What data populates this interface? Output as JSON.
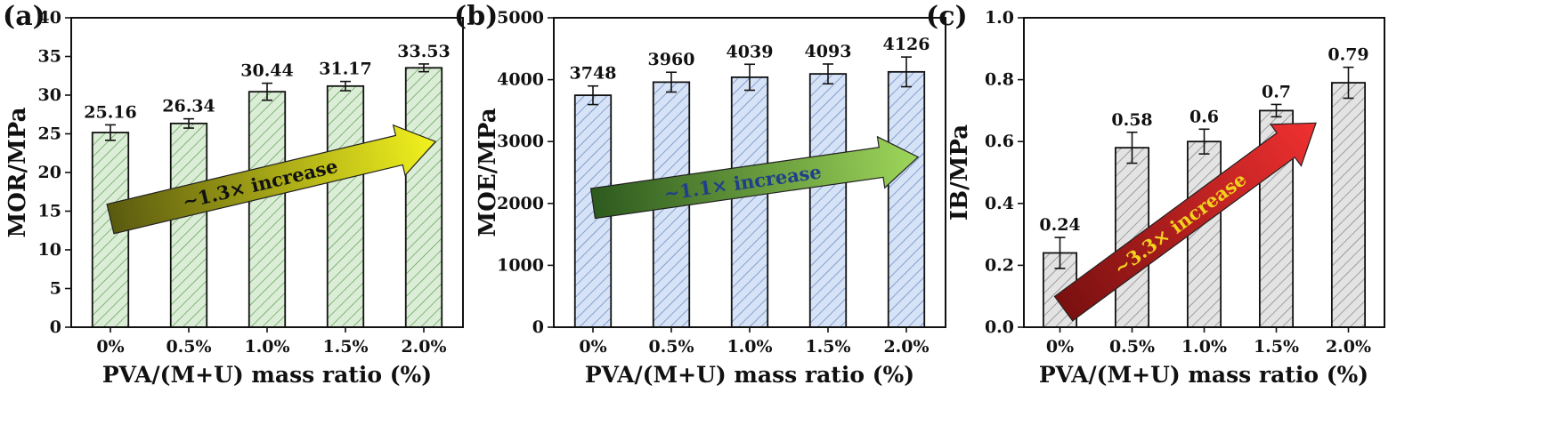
{
  "chart_data": [
    {
      "panel_label": "(a)",
      "type": "bar",
      "categories": [
        "0%",
        "0.5%",
        "1.0%",
        "1.5%",
        "2.0%"
      ],
      "values": [
        25.16,
        26.34,
        30.44,
        31.17,
        33.53
      ],
      "value_labels": [
        "25.16",
        "26.34",
        "30.44",
        "31.17",
        "33.53"
      ],
      "errors": [
        1.0,
        0.6,
        1.1,
        0.6,
        0.5
      ],
      "xlabel": "PVA/(M+U) mass ratio (%)",
      "ylabel": "MOR/MPa",
      "ylim": [
        0,
        40
      ],
      "yticks": [
        0,
        5,
        10,
        15,
        20,
        25,
        30,
        35,
        40
      ],
      "ytick_labels": [
        "0",
        "5",
        "10",
        "15",
        "20",
        "25",
        "30",
        "35",
        "40"
      ],
      "annotation": "~1.3× increase",
      "arrow": {
        "from_category": 0,
        "from_value": 14,
        "to_category": 4.15,
        "to_value": 24
      },
      "bar_color": "#dcedd7",
      "hatch_color": "#4f9a45",
      "arrow_colors": [
        "#5a5a10",
        "#f2f21e"
      ],
      "annotation_color": "#111111"
    },
    {
      "panel_label": "(b)",
      "type": "bar",
      "categories": [
        "0%",
        "0.5%",
        "1.0%",
        "1.5%",
        "2.0%"
      ],
      "values": [
        3748,
        3960,
        4039,
        4093,
        4126
      ],
      "value_labels": [
        "3748",
        "3960",
        "4039",
        "4093",
        "4126"
      ],
      "errors": [
        150,
        160,
        210,
        160,
        240
      ],
      "xlabel": "PVA/(M+U) mass ratio (%)",
      "ylabel": "MOE/MPa",
      "ylim": [
        0,
        5000
      ],
      "yticks": [
        0,
        1000,
        2000,
        3000,
        4000,
        5000
      ],
      "ytick_labels": [
        "0",
        "1000",
        "2000",
        "3000",
        "4000",
        "5000"
      ],
      "annotation": "~1.1× increase",
      "arrow": {
        "from_category": 0,
        "from_value": 2000,
        "to_category": 4.15,
        "to_value": 2750
      },
      "bar_color": "#d6e2f5",
      "hatch_color": "#5b7dbf",
      "arrow_colors": [
        "#2d5a1e",
        "#9ed65a"
      ],
      "annotation_color": "#1f3f8a"
    },
    {
      "panel_label": "(c)",
      "type": "bar",
      "categories": [
        "0%",
        "0.5%",
        "1.0%",
        "1.5%",
        "2.0%"
      ],
      "values": [
        0.24,
        0.58,
        0.6,
        0.7,
        0.79
      ],
      "value_labels": [
        "0.24",
        "0.58",
        "0.6",
        "0.7",
        "0.79"
      ],
      "errors": [
        0.05,
        0.05,
        0.04,
        0.02,
        0.05
      ],
      "xlabel": "PVA/(M+U) mass ratio (%)",
      "ylabel": "IB/MPa",
      "ylim": [
        0,
        1.0
      ],
      "yticks": [
        0,
        0.2,
        0.4,
        0.6,
        0.8,
        1.0
      ],
      "ytick_labels": [
        "0.0",
        "0.2",
        "0.4",
        "0.6",
        "0.8",
        "1.0"
      ],
      "annotation": "~3.3× increase",
      "arrow": {
        "from_category": 0.05,
        "from_value": 0.06,
        "to_category": 3.55,
        "to_value": 0.66
      },
      "bar_color": "#e3e3e3",
      "hatch_color": "#7a7a7a",
      "arrow_colors": [
        "#7a1010",
        "#f03030"
      ],
      "annotation_color": "#f2d21e"
    }
  ]
}
